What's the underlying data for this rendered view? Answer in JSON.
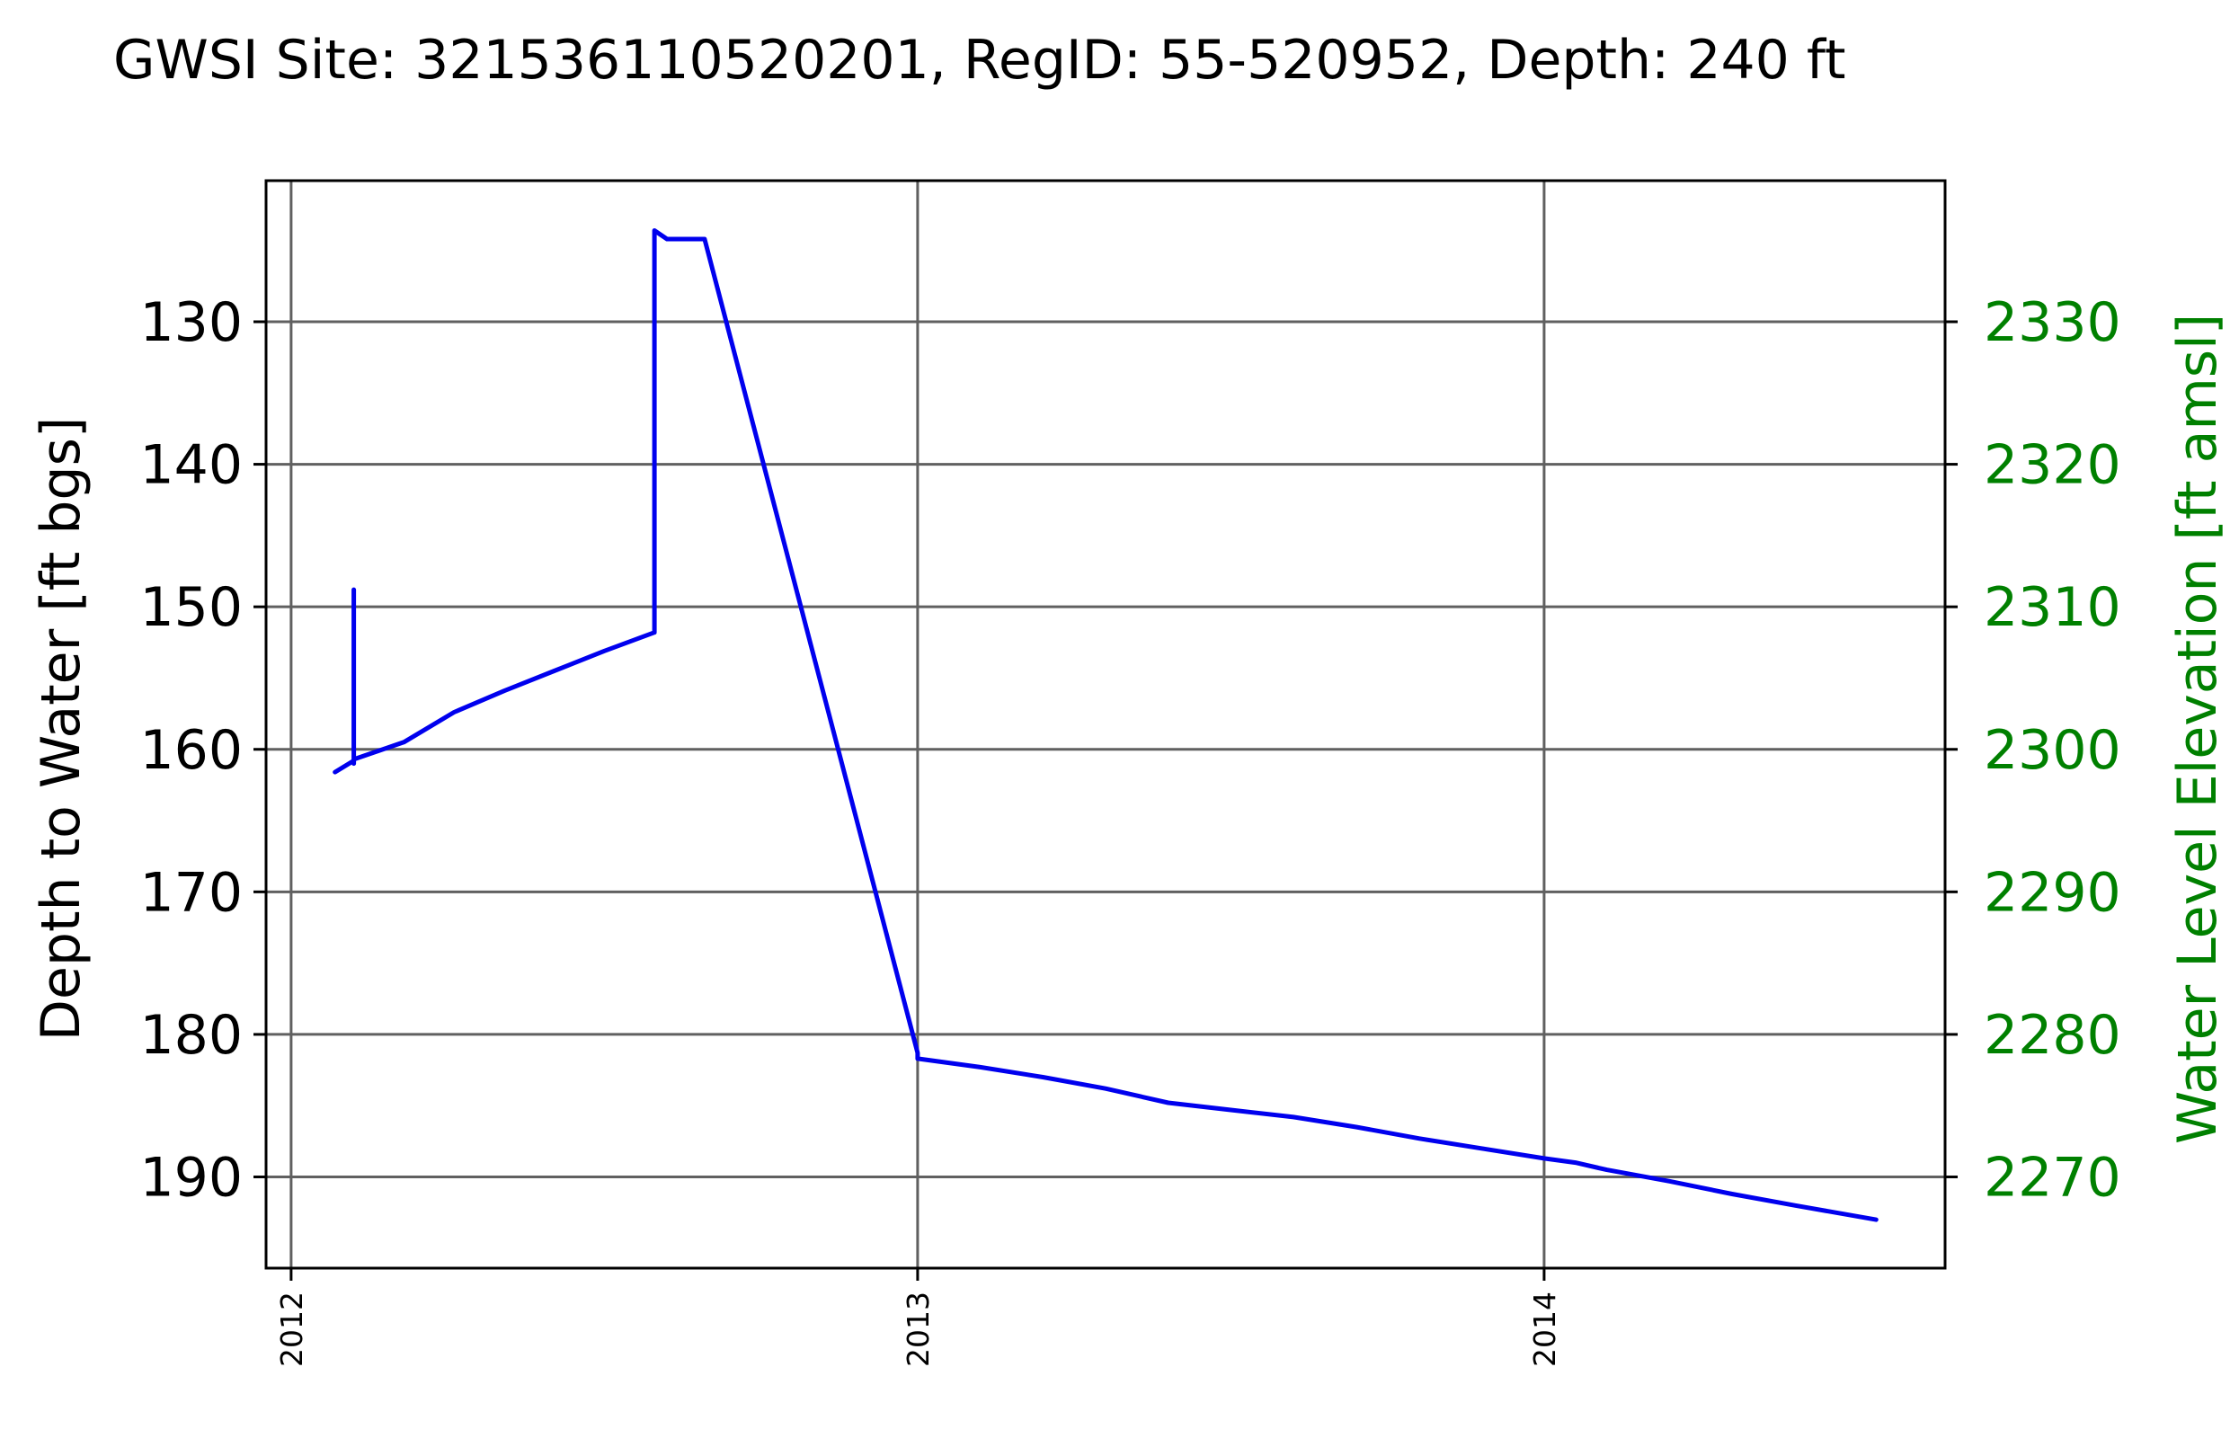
{
  "chart_data": {
    "type": "line",
    "title": "GWSI Site: 321536110520201, RegID: 55-520952, Depth: 240 ft",
    "ylabel": "Depth to Water [ft bgs]",
    "ylabel_right": "Water Level Elevation [ft amsl]",
    "xlabel": "",
    "x_ticks": [
      "2012",
      "2013",
      "2014"
    ],
    "y_ticks": [
      130,
      140,
      150,
      160,
      170,
      180,
      190
    ],
    "y_ticks_right": [
      2330,
      2320,
      2310,
      2300,
      2290,
      2280,
      2270
    ],
    "xlim": [
      2011.96,
      2014.64
    ],
    "ylim": [
      196.4,
      120.1
    ],
    "ylim_right": [
      2263.6,
      2339.9
    ],
    "y_inverted": true,
    "grid": true,
    "colors": {
      "line": "#0000ee",
      "right_axis": "#008000",
      "grid": "#606060"
    },
    "series": [
      {
        "x": [
          2012.07,
          2012.1,
          2012.1,
          2012.1,
          2012.1,
          2012.18,
          2012.26,
          2012.34,
          2012.42,
          2012.5,
          2012.58,
          2012.58,
          2012.6,
          2012.66,
          2013.0,
          2013.0,
          2013.05,
          2013.1,
          2013.2,
          2013.3,
          2013.4,
          2013.5,
          2013.6,
          2013.7,
          2013.8,
          2013.9,
          2014.0,
          2014.05,
          2014.1,
          2014.2,
          2014.3,
          2014.4,
          2014.53
        ],
        "y": [
          161.6,
          160.8,
          148.8,
          161.0,
          160.7,
          159.5,
          157.4,
          155.9,
          154.5,
          153.1,
          151.8,
          123.6,
          124.2,
          124.2,
          181.3,
          181.7,
          182.0,
          182.3,
          183.0,
          183.8,
          184.8,
          185.3,
          185.8,
          186.5,
          187.3,
          188.0,
          188.7,
          189.0,
          189.5,
          190.3,
          191.2,
          192.0,
          193.0
        ]
      }
    ]
  }
}
